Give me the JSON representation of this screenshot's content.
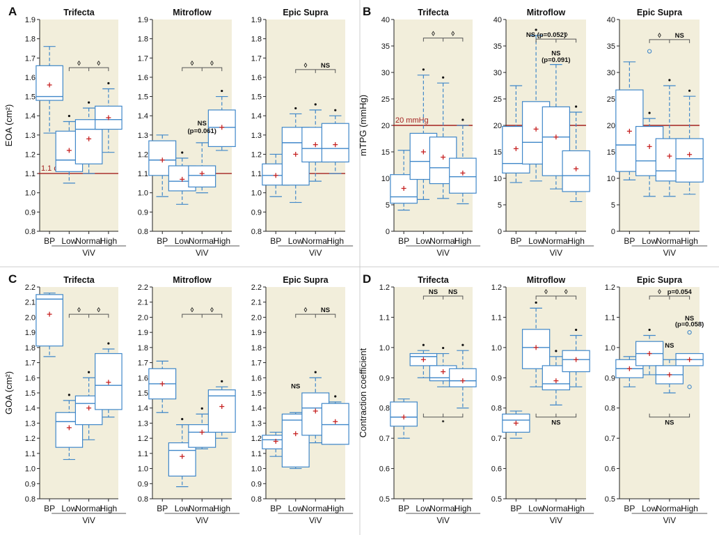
{
  "chart_data": [
    {
      "panel": "A",
      "letter": "A",
      "title": "Trifecta",
      "type": "box",
      "ylabel": "EOA (cm²)",
      "ylim": [
        0.8,
        1.9
      ],
      "yticks": [
        0.8,
        0.9,
        1.0,
        1.1,
        1.2,
        1.3,
        1.4,
        1.5,
        1.6,
        1.7,
        1.8,
        1.9
      ],
      "categories": [
        "BP",
        "Low",
        "Normal",
        "High"
      ],
      "group_label": "ViV",
      "ref_line": {
        "value": 1.1,
        "label": "1.1 cm²"
      },
      "boxes": [
        {
          "wlo": 1.31,
          "q1": 1.48,
          "med": 1.5,
          "q3": 1.66,
          "whi": 1.76,
          "mean": 1.56
        },
        {
          "wlo": 1.05,
          "q1": 1.11,
          "med": 1.17,
          "q3": 1.32,
          "whi": 1.37,
          "mean": 1.22,
          "star": true
        },
        {
          "wlo": 1.1,
          "q1": 1.15,
          "med": 1.33,
          "q3": 1.38,
          "whi": 1.44,
          "mean": 1.28,
          "star": true
        },
        {
          "wlo": 1.21,
          "q1": 1.33,
          "med": 1.38,
          "q3": 1.45,
          "whi": 1.54,
          "mean": 1.39,
          "star": true
        }
      ],
      "bracket": {
        "level": 1.65,
        "labels": [
          "◊",
          "◊"
        ]
      },
      "notes": []
    },
    {
      "panel": "A",
      "letter": "",
      "title": "Mitroflow",
      "type": "box",
      "ylabel": "",
      "ylim": [
        0.8,
        1.9
      ],
      "yticks": [
        0.8,
        0.9,
        1.0,
        1.1,
        1.2,
        1.3,
        1.4,
        1.5,
        1.6,
        1.7,
        1.8,
        1.9
      ],
      "categories": [
        "BP",
        "Low",
        "Normal",
        "High"
      ],
      "group_label": "ViV",
      "ref_line": {
        "value": 1.1,
        "label": ""
      },
      "boxes": [
        {
          "wlo": 0.98,
          "q1": 1.09,
          "med": 1.17,
          "q3": 1.27,
          "whi": 1.3,
          "mean": 1.17
        },
        {
          "wlo": 0.94,
          "q1": 1.01,
          "med": 1.06,
          "q3": 1.14,
          "whi": 1.18,
          "mean": 1.07,
          "star": true
        },
        {
          "wlo": 1.0,
          "q1": 1.03,
          "med": 1.09,
          "q3": 1.14,
          "whi": 1.26,
          "mean": 1.1
        },
        {
          "wlo": 1.22,
          "q1": 1.24,
          "med": 1.34,
          "q3": 1.43,
          "whi": 1.5,
          "mean": 1.34,
          "star": true
        }
      ],
      "bracket": {
        "level": 1.65,
        "labels": [
          "◊",
          "◊"
        ]
      },
      "notes": [
        {
          "text": "NS",
          "x": 2,
          "y": 1.35
        },
        {
          "text": "(p=0.061)",
          "x": 2,
          "y": 1.31
        }
      ]
    },
    {
      "panel": "A",
      "letter": "",
      "title": "Epic Supra",
      "type": "box",
      "ylabel": "",
      "ylim": [
        0.8,
        1.9
      ],
      "yticks": [
        0.8,
        0.9,
        1.0,
        1.1,
        1.2,
        1.3,
        1.4,
        1.5,
        1.6,
        1.7,
        1.8,
        1.9
      ],
      "categories": [
        "BP",
        "Low",
        "Normal",
        "High"
      ],
      "group_label": "ViV",
      "ref_line": {
        "value": 1.1,
        "label": ""
      },
      "boxes": [
        {
          "wlo": 0.98,
          "q1": 1.04,
          "med": 1.09,
          "q3": 1.15,
          "whi": 1.2,
          "mean": 1.09
        },
        {
          "wlo": 0.95,
          "q1": 1.04,
          "med": 1.26,
          "q3": 1.34,
          "whi": 1.41,
          "mean": 1.2,
          "star": true
        },
        {
          "wlo": 1.06,
          "q1": 1.16,
          "med": 1.23,
          "q3": 1.34,
          "whi": 1.43,
          "mean": 1.25,
          "star": true
        },
        {
          "wlo": 1.1,
          "q1": 1.16,
          "med": 1.23,
          "q3": 1.36,
          "whi": 1.4,
          "mean": 1.25,
          "star": true
        }
      ],
      "bracket": {
        "level": 1.64,
        "labels": [
          "◊",
          "NS"
        ]
      },
      "notes": []
    },
    {
      "panel": "B",
      "letter": "B",
      "title": "Trifecta",
      "type": "box",
      "ylabel": "mTPG (mmHg)",
      "ylim": [
        0,
        40
      ],
      "yticks": [
        0,
        5,
        10,
        15,
        20,
        25,
        30,
        35,
        40
      ],
      "categories": [
        "BP",
        "Low",
        "Normal",
        "High"
      ],
      "group_label": "ViV",
      "ref_line": {
        "value": 20,
        "label": "20 mmHg"
      },
      "boxes": [
        {
          "wlo": 4,
          "q1": 5.3,
          "med": 6.5,
          "q3": 10.7,
          "whi": 15.3,
          "mean": 8.1
        },
        {
          "wlo": 6,
          "q1": 9.8,
          "med": 13.2,
          "q3": 18.5,
          "whi": 29.5,
          "mean": 15,
          "star": true
        },
        {
          "wlo": 6.2,
          "q1": 9,
          "med": 12,
          "q3": 17.8,
          "whi": 28,
          "mean": 14,
          "star": true
        },
        {
          "wlo": 5.2,
          "q1": 7.2,
          "med": 10.3,
          "q3": 13.8,
          "whi": 20,
          "mean": 11,
          "star": true
        }
      ],
      "bracket": {
        "level": 36.5,
        "labels": [
          "◊",
          "◊"
        ]
      },
      "notes": []
    },
    {
      "panel": "B",
      "letter": "",
      "title": "Mitroflow",
      "type": "box",
      "ylabel": "",
      "ylim": [
        0,
        40
      ],
      "yticks": [
        0,
        5,
        10,
        15,
        20,
        25,
        30,
        35,
        40
      ],
      "categories": [
        "BP",
        "Low",
        "Normal",
        "High"
      ],
      "group_label": "ViV",
      "ref_line": {
        "value": 20,
        "label": ""
      },
      "boxes": [
        {
          "wlo": 9.2,
          "q1": 11,
          "med": 12.8,
          "q3": 19.8,
          "whi": 27.5,
          "mean": 15.6
        },
        {
          "wlo": 9.5,
          "q1": 12.7,
          "med": 16.8,
          "q3": 24.5,
          "whi": 37,
          "mean": 19.3,
          "star": true
        },
        {
          "wlo": 8,
          "q1": 10.5,
          "med": 17.8,
          "q3": 23.5,
          "whi": 31.5,
          "mean": 17.8
        },
        {
          "wlo": 5.6,
          "q1": 7.5,
          "med": 10.5,
          "q3": 15.2,
          "whi": 22.5,
          "mean": 11.8,
          "star": true
        }
      ],
      "bracket": {
        "level": 36.3,
        "labels": [
          "NS (p=0.052)",
          "◊"
        ]
      },
      "notes": [
        {
          "text": "NS",
          "x": 2,
          "y": 33.2
        },
        {
          "text": "(p=0.091)",
          "x": 2,
          "y": 32
        }
      ]
    },
    {
      "panel": "B",
      "letter": "",
      "title": "Epic Supra",
      "type": "box",
      "ylabel": "",
      "ylim": [
        0,
        40
      ],
      "yticks": [
        0,
        5,
        10,
        15,
        20,
        25,
        30,
        35,
        40
      ],
      "categories": [
        "BP",
        "Low",
        "Normal",
        "High"
      ],
      "group_label": "ViV",
      "ref_line": {
        "value": 20,
        "label": ""
      },
      "boxes": [
        {
          "wlo": 9.7,
          "q1": 11.3,
          "med": 16.3,
          "q3": 26.7,
          "whi": 32,
          "mean": 18.9
        },
        {
          "wlo": 6.6,
          "q1": 10.5,
          "med": 13.3,
          "q3": 19.8,
          "whi": 21.3,
          "mean": 16,
          "star": true,
          "outlier": 34
        },
        {
          "wlo": 6.6,
          "q1": 9.5,
          "med": 11.4,
          "q3": 17.5,
          "whi": 27.5,
          "mean": 14.2,
          "star": true
        },
        {
          "wlo": 7,
          "q1": 9.3,
          "med": 13.7,
          "q3": 17.5,
          "whi": 25.5,
          "mean": 14.5,
          "star": true
        }
      ],
      "bracket": {
        "level": 36.2,
        "labels": [
          "◊",
          "NS"
        ]
      },
      "notes": []
    },
    {
      "panel": "C",
      "letter": "C",
      "title": "Trifecta",
      "type": "box",
      "ylabel": "GOA (cm²)",
      "ylim": [
        0.8,
        2.2
      ],
      "yticks": [
        0.8,
        0.9,
        1.0,
        1.1,
        1.2,
        1.3,
        1.4,
        1.5,
        1.6,
        1.7,
        1.8,
        1.9,
        2.0,
        2.1,
        2.2
      ],
      "categories": [
        "BP",
        "Low",
        "Normal",
        "High"
      ],
      "group_label": "ViV",
      "boxes": [
        {
          "wlo": 1.74,
          "q1": 1.81,
          "med": 2.12,
          "q3": 2.15,
          "whi": 2.16,
          "mean": 2.02
        },
        {
          "wlo": 1.06,
          "q1": 1.14,
          "med": 1.31,
          "q3": 1.37,
          "whi": 1.45,
          "mean": 1.27,
          "star": true
        },
        {
          "wlo": 1.19,
          "q1": 1.29,
          "med": 1.43,
          "q3": 1.48,
          "whi": 1.6,
          "mean": 1.4,
          "star": true
        },
        {
          "wlo": 1.34,
          "q1": 1.39,
          "med": 1.55,
          "q3": 1.76,
          "whi": 1.79,
          "mean": 1.57,
          "star": true
        }
      ],
      "bracket": {
        "level": 2.02,
        "labels": [
          "◊",
          "◊"
        ]
      },
      "notes": []
    },
    {
      "panel": "C",
      "letter": "",
      "title": "Mitroflow",
      "type": "box",
      "ylabel": "",
      "ylim": [
        0.8,
        2.2
      ],
      "yticks": [
        0.8,
        0.9,
        1.0,
        1.1,
        1.2,
        1.3,
        1.4,
        1.5,
        1.6,
        1.7,
        1.8,
        1.9,
        2.0,
        2.1,
        2.2
      ],
      "categories": [
        "BP",
        "Low",
        "Normal",
        "High"
      ],
      "group_label": "ViV",
      "boxes": [
        {
          "wlo": 1.37,
          "q1": 1.46,
          "med": 1.56,
          "q3": 1.66,
          "whi": 1.71,
          "mean": 1.56
        },
        {
          "wlo": 0.88,
          "q1": 0.95,
          "med": 1.12,
          "q3": 1.17,
          "whi": 1.29,
          "mean": 1.08,
          "star": true
        },
        {
          "wlo": 1.13,
          "q1": 1.14,
          "med": 1.24,
          "q3": 1.29,
          "whi": 1.36,
          "mean": 1.24,
          "star": true
        },
        {
          "wlo": 1.2,
          "q1": 1.24,
          "med": 1.48,
          "q3": 1.52,
          "whi": 1.54,
          "mean": 1.41,
          "star": true
        }
      ],
      "bracket": {
        "level": 2.02,
        "labels": [
          "◊",
          "◊"
        ]
      },
      "notes": []
    },
    {
      "panel": "C",
      "letter": "",
      "title": "Epic Supra",
      "type": "box",
      "ylabel": "",
      "ylim": [
        0.8,
        2.2
      ],
      "yticks": [
        0.8,
        0.9,
        1.0,
        1.1,
        1.2,
        1.3,
        1.4,
        1.5,
        1.6,
        1.7,
        1.8,
        1.9,
        2.0,
        2.1,
        2.2
      ],
      "categories": [
        "BP",
        "Low",
        "Normal",
        "High"
      ],
      "group_label": "ViV",
      "boxes": [
        {
          "wlo": 1.08,
          "q1": 1.13,
          "med": 1.19,
          "q3": 1.22,
          "whi": 1.24,
          "mean": 1.18
        },
        {
          "wlo": 1.0,
          "q1": 1.01,
          "med": 1.32,
          "q3": 1.36,
          "whi": 1.37,
          "mean": 1.23
        },
        {
          "wlo": 1.17,
          "q1": 1.22,
          "med": 1.4,
          "q3": 1.5,
          "whi": 1.6,
          "mean": 1.38,
          "star": true
        },
        {
          "wlo": 1.16,
          "q1": 1.16,
          "med": 1.29,
          "q3": 1.43,
          "whi": 1.44,
          "mean": 1.31,
          "star": true
        }
      ],
      "bracket": {
        "level": 2.02,
        "labels": [
          "◊",
          "NS"
        ]
      },
      "notes": [
        {
          "text": "NS",
          "x": 1,
          "y": 1.53
        }
      ]
    },
    {
      "panel": "D",
      "letter": "D",
      "title": "Trifecta",
      "type": "box",
      "ylabel": "Contraction coefficient",
      "ylim": [
        0.5,
        1.2
      ],
      "yticks": [
        0.5,
        0.6,
        0.7,
        0.8,
        0.9,
        1.0,
        1.1,
        1.2
      ],
      "categories": [
        "BP",
        "Low",
        "Normal",
        "High"
      ],
      "group_label": "ViV",
      "boxes": [
        {
          "wlo": 0.7,
          "q1": 0.74,
          "med": 0.77,
          "q3": 0.82,
          "whi": 0.83,
          "mean": 0.77
        },
        {
          "wlo": 0.9,
          "q1": 0.94,
          "med": 0.97,
          "q3": 0.98,
          "whi": 0.99,
          "mean": 0.96,
          "star": true
        },
        {
          "wlo": 0.87,
          "q1": 0.89,
          "med": 0.9,
          "q3": 0.94,
          "whi": 0.98,
          "mean": 0.92,
          "star": true
        },
        {
          "wlo": 0.8,
          "q1": 0.87,
          "med": 0.89,
          "q3": 0.93,
          "whi": 0.99,
          "mean": 0.89,
          "star": true
        }
      ],
      "bracket": {
        "level": 1.17,
        "labels": [
          "NS",
          "NS"
        ]
      },
      "bottom": {
        "level": 0.77,
        "label": "*"
      },
      "notes": []
    },
    {
      "panel": "D",
      "letter": "",
      "title": "Mitroflow",
      "type": "box",
      "ylabel": "",
      "ylim": [
        0.5,
        1.2
      ],
      "yticks": [
        0.5,
        0.6,
        0.7,
        0.8,
        0.9,
        1.0,
        1.1,
        1.2
      ],
      "categories": [
        "BP",
        "Low",
        "Normal",
        "High"
      ],
      "group_label": "ViV",
      "boxes": [
        {
          "wlo": 0.7,
          "q1": 0.72,
          "med": 0.76,
          "q3": 0.78,
          "whi": 0.79,
          "mean": 0.75
        },
        {
          "wlo": 0.87,
          "q1": 0.93,
          "med": 1.0,
          "q3": 1.06,
          "whi": 1.13,
          "mean": 1.0,
          "star": true
        },
        {
          "wlo": 0.81,
          "q1": 0.86,
          "med": 0.88,
          "q3": 0.94,
          "whi": 0.97,
          "mean": 0.89,
          "star": true
        },
        {
          "wlo": 0.87,
          "q1": 0.92,
          "med": 0.96,
          "q3": 0.99,
          "whi": 1.04,
          "mean": 0.96,
          "star": true
        }
      ],
      "bracket": {
        "level": 1.17,
        "labels": [
          "◊",
          "◊"
        ]
      },
      "bottom": {
        "level": 0.77,
        "label": "NS"
      },
      "notes": []
    },
    {
      "panel": "D",
      "letter": "",
      "title": "Epic Supra",
      "type": "box",
      "ylabel": "",
      "ylim": [
        0.5,
        1.2
      ],
      "yticks": [
        0.5,
        0.6,
        0.7,
        0.8,
        0.9,
        1.0,
        1.1,
        1.2
      ],
      "categories": [
        "BP",
        "Low",
        "Normal",
        "High"
      ],
      "group_label": "ViV",
      "boxes": [
        {
          "wlo": 0.87,
          "q1": 0.9,
          "med": 0.93,
          "q3": 0.96,
          "whi": 0.97,
          "mean": 0.93
        },
        {
          "wlo": 0.91,
          "q1": 0.94,
          "med": 0.98,
          "q3": 1.02,
          "whi": 1.04,
          "mean": 0.98,
          "star": true
        },
        {
          "wlo": 0.85,
          "q1": 0.88,
          "med": 0.91,
          "q3": 0.94,
          "whi": 0.96,
          "mean": 0.91
        },
        {
          "wlo": 0.94,
          "q1": 0.94,
          "med": 0.96,
          "q3": 0.98,
          "whi": 0.98,
          "mean": 0.96,
          "outliers": [
            1.05,
            0.87
          ]
        }
      ],
      "bracket": {
        "level": 1.17,
        "labels": [
          "◊",
          "p=0.054"
        ]
      },
      "bottom": {
        "level": 0.77,
        "label": "NS"
      },
      "notes": [
        {
          "text": "NS",
          "x": 2,
          "y": 1.0
        },
        {
          "text": "NS",
          "x": 3,
          "y": 1.09
        },
        {
          "text": "(p=0.058)",
          "x": 3,
          "y": 1.07
        }
      ]
    }
  ]
}
